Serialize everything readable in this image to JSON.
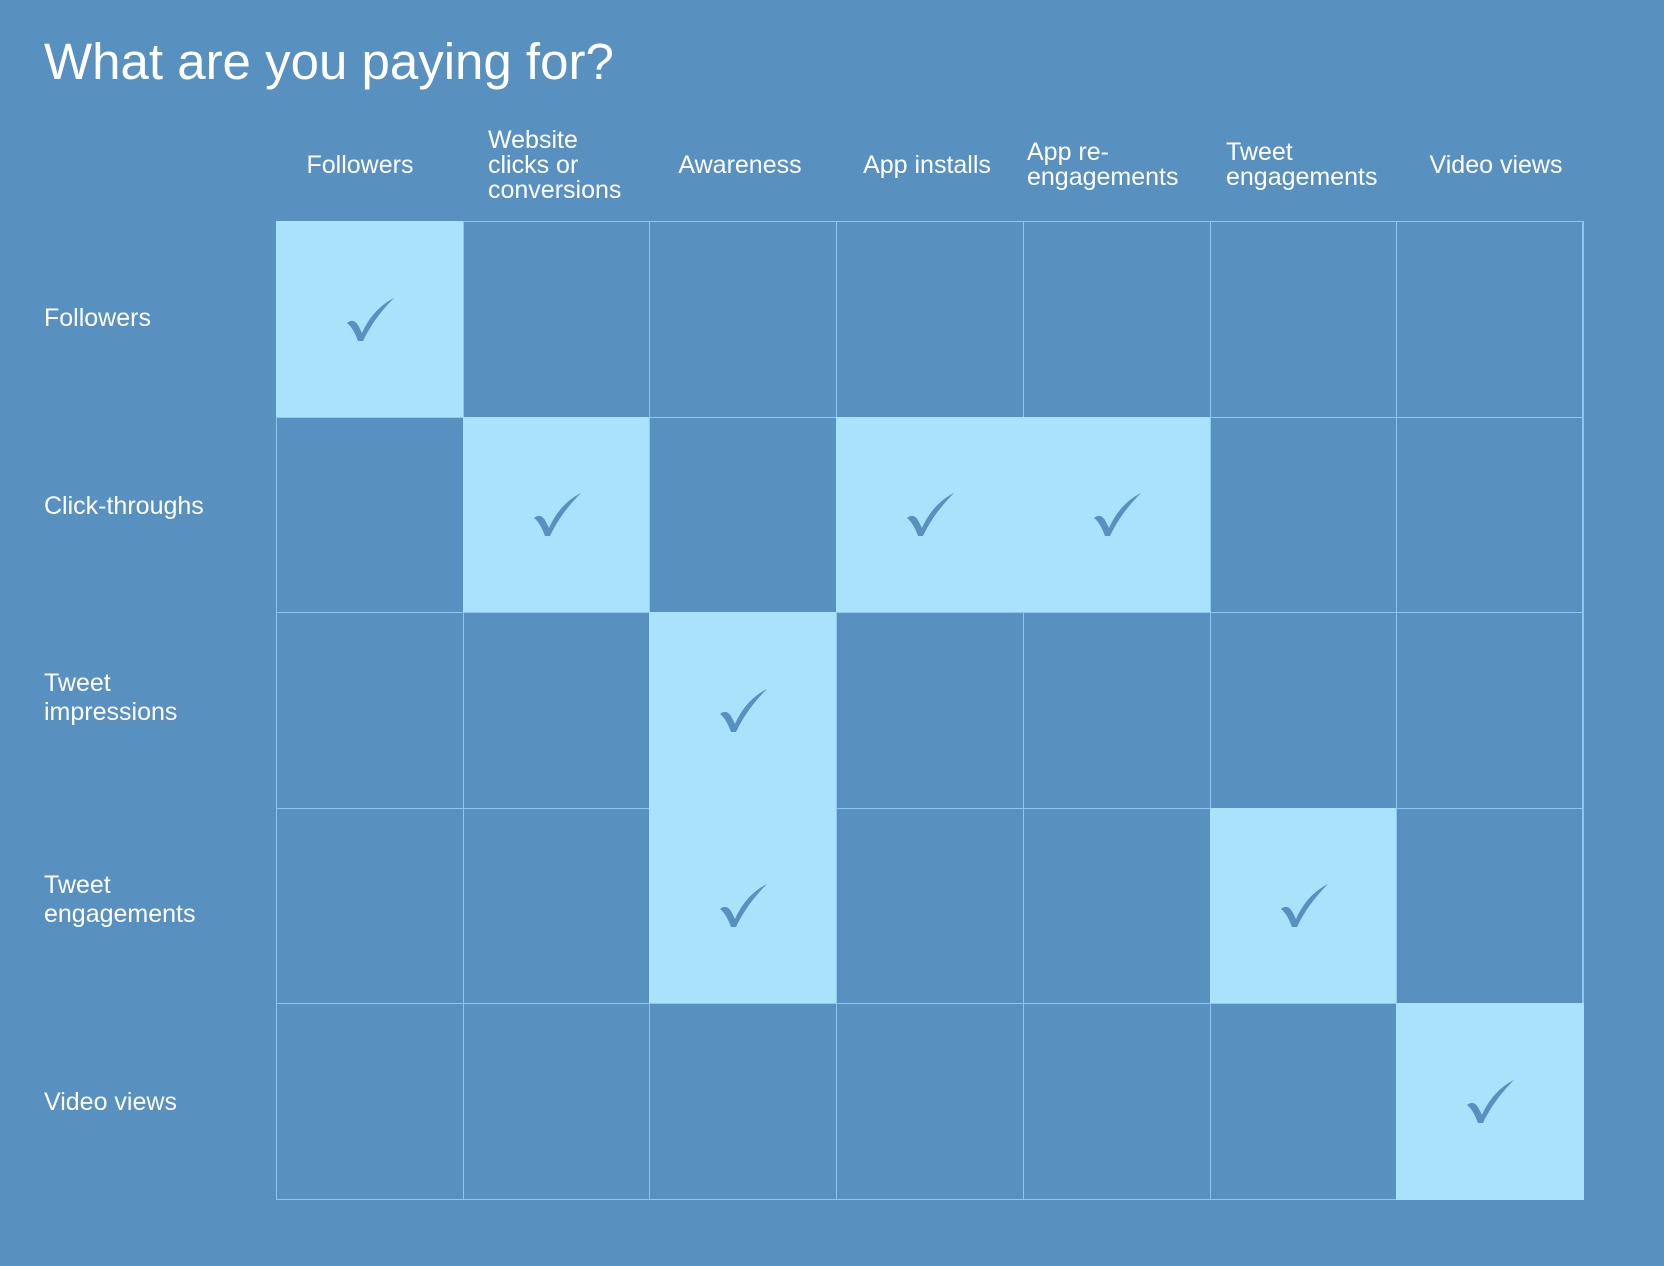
{
  "title": "What are you paying for?",
  "columns": [
    {
      "lines": [
        "Followers"
      ],
      "align": "center"
    },
    {
      "lines": [
        "Website",
        "clicks or",
        "conversions"
      ],
      "align": "left"
    },
    {
      "lines": [
        "Awareness"
      ],
      "align": "center"
    },
    {
      "lines": [
        "App installs"
      ],
      "align": "center"
    },
    {
      "lines": [
        "App re-",
        "engagements"
      ],
      "align": "left"
    },
    {
      "lines": [
        "Tweet",
        "engagements"
      ],
      "align": "left"
    },
    {
      "lines": [
        "Video views"
      ],
      "align": "center"
    }
  ],
  "rows": [
    {
      "lines": [
        "Followers"
      ],
      "checked": [
        0
      ]
    },
    {
      "lines": [
        "Click-throughs"
      ],
      "checked": [
        1,
        3,
        4
      ]
    },
    {
      "lines": [
        "Tweet",
        "impressions"
      ],
      "checked": [
        2
      ]
    },
    {
      "lines": [
        "Tweet",
        "engagements"
      ],
      "checked": [
        2,
        5
      ]
    },
    {
      "lines": [
        "Video views"
      ],
      "checked": [
        6
      ]
    }
  ],
  "colors": {
    "background": "#5890bf",
    "checked_cell": "#a9e2fa",
    "grid_line": "#8cc8ee",
    "check_mark": "#5890bf"
  },
  "icon": "check-icon"
}
